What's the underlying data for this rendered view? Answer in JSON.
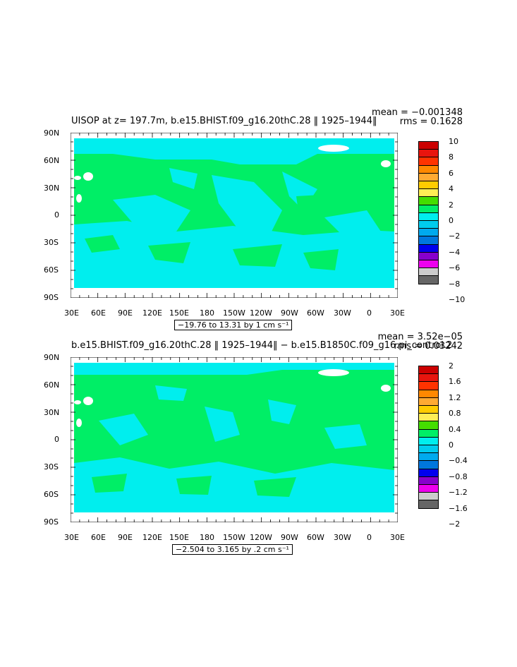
{
  "panels": [
    {
      "title": "UISOP at z= 197.7m, b.e15.BHIST.f09_g16.20thC.28 ‖ 1925–1944‖",
      "mean": "mean = −0.001348",
      "rms": "rms = 0.1628",
      "range_label": "−19.76 to 13.31 by 1 cm s⁻¹",
      "colorbar": {
        "colors": [
          "#cc0000",
          "#e8150e",
          "#ff3300",
          "#ff8800",
          "#ffaa33",
          "#ffcc00",
          "#ffee55",
          "#44dd00",
          "#00ee66",
          "#00eeee",
          "#00ccee",
          "#00aaee",
          "#0077dd",
          "#0000ee",
          "#8800cc",
          "#ee00ee",
          "#cccccc",
          "#666666"
        ],
        "labels": [
          "10",
          "8",
          "6",
          "4",
          "2",
          "0",
          "−2",
          "−4",
          "−6",
          "−8",
          "−10"
        ]
      }
    },
    {
      "title": "b.e15.BHIST.f09_g16.20thC.28 ‖ 1925–1944‖ − b.e15.B1850C.f09_g16.pi_control.2",
      "mean": "mean = 3.52e−05",
      "rms": "rms = 0.03242",
      "range_label": "−2.504 to 3.165 by .2 cm s⁻¹",
      "colorbar": {
        "colors": [
          "#cc0000",
          "#e8150e",
          "#ff3300",
          "#ff8800",
          "#ffaa33",
          "#ffcc00",
          "#ffee55",
          "#44dd00",
          "#00ee66",
          "#00eeee",
          "#00ccee",
          "#00aaee",
          "#0077dd",
          "#0000ee",
          "#8800cc",
          "#ee00ee",
          "#cccccc",
          "#666666"
        ],
        "labels": [
          "2",
          "1.6",
          "1.2",
          "0.8",
          "0.4",
          "0",
          "−0.4",
          "−0.8",
          "−1.2",
          "−1.6",
          "−2"
        ]
      }
    }
  ],
  "lat_labels": [
    "90N",
    "60N",
    "30N",
    "0",
    "30S",
    "60S",
    "90S"
  ],
  "lon_labels": [
    "30E",
    "60E",
    "90E",
    "120E",
    "150E",
    "180",
    "150W",
    "120W",
    "90W",
    "60W",
    "30W",
    "0",
    "30E"
  ],
  "colors": {
    "land": "#00ee66",
    "negative": "#00eeee",
    "missing": "#ffffff",
    "frame": "#000000"
  }
}
